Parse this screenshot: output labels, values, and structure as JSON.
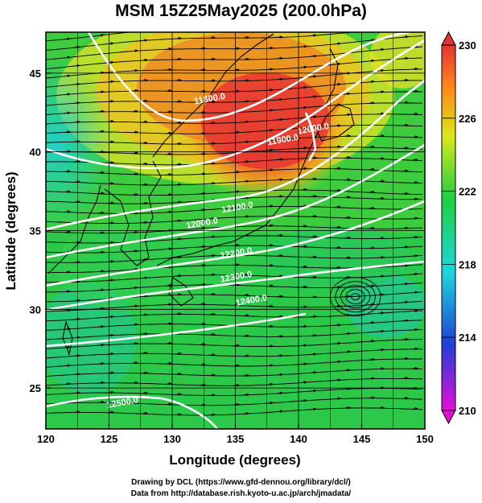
{
  "title": "MSM 15Z25May2025 (200.0hPa)",
  "x_axis": {
    "label": "Longitude (degrees)",
    "range": [
      120,
      150
    ],
    "ticks": [
      120,
      125,
      130,
      135,
      140,
      145,
      150
    ]
  },
  "y_axis": {
    "label": "Latitude  (degrees)",
    "range": [
      22.4,
      47.6
    ],
    "ticks": [
      25,
      30,
      35,
      40,
      45
    ]
  },
  "colorbar": {
    "range": [
      210,
      230
    ],
    "ticks": [
      210,
      214,
      218,
      222,
      226,
      230
    ],
    "colors": [
      "#e60fd8",
      "#1f3fd6",
      "#1ed6dc",
      "#1fd040",
      "#d8e81a",
      "#ff8a1a",
      "#e63232"
    ]
  },
  "field": {
    "name": "temperature (shaded), geopotential height (contours), wind (streamlines)",
    "warm_core": {
      "lon": 137,
      "lat": 41.5,
      "value": 229
    }
  },
  "contour_labels": [
    {
      "text": "11800.0",
      "lon": 133,
      "lat": 43.2
    },
    {
      "text": "11900.0",
      "lon": 138.8,
      "lat": 40.6
    },
    {
      "text": "12000.0",
      "lon": 141.2,
      "lat": 41.3
    },
    {
      "text": "12000.0",
      "lon": 132.4,
      "lat": 35.3
    },
    {
      "text": "12100.0",
      "lon": 135.2,
      "lat": 36.3
    },
    {
      "text": "12200.0",
      "lon": 135.1,
      "lat": 33.4
    },
    {
      "text": "12300.0",
      "lon": 135.1,
      "lat": 31.9
    },
    {
      "text": "12400.0",
      "lon": 136.3,
      "lat": 30.4
    },
    {
      "text": "12500.0",
      "lon": 126.1,
      "lat": 23.9
    }
  ],
  "credits": {
    "line1": "Drawing by DCL (https://www.gfd-dennou.org/library/dcl/)",
    "line2": "Data from http://database.rish.kyoto-u.ac.jp/arch/jmadata/"
  }
}
